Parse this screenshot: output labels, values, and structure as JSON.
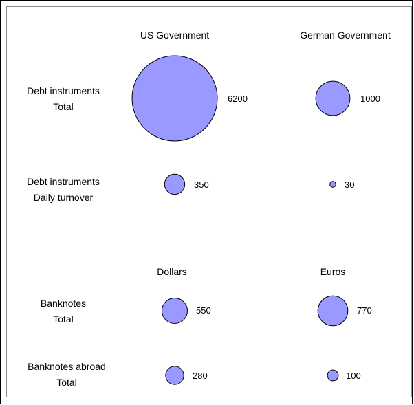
{
  "chart_data": {
    "type": "bubble",
    "title": "",
    "column_headers": {
      "debt": [
        "US Government",
        "German Government"
      ],
      "banknotes": [
        "Dollars",
        "Euros"
      ]
    },
    "row_labels": [
      [
        "Debt instruments",
        "Total"
      ],
      [
        "Debt instruments",
        "Daily turnover"
      ],
      [
        "Banknotes",
        "Total"
      ],
      [
        "Banknotes abroad",
        "Total"
      ]
    ],
    "values": [
      [
        6200,
        1000
      ],
      [
        350,
        30
      ],
      [
        550,
        770
      ],
      [
        280,
        100
      ]
    ],
    "bubble_fill": "#9999ff",
    "bubble_stroke": "#000000"
  }
}
